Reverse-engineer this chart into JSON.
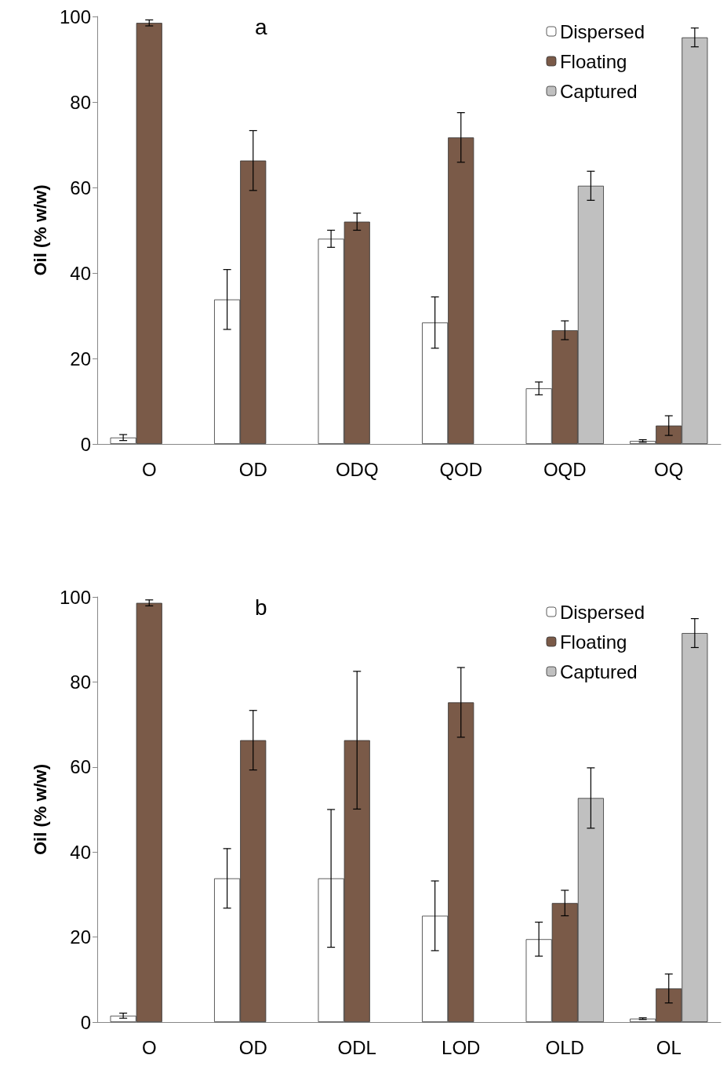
{
  "chart_data": [
    {
      "type": "bar",
      "title": "a",
      "ylabel": "Oil (% w/w)",
      "categories": [
        "O",
        "OD",
        "ODQ",
        "QOD",
        "OQD",
        "OQ"
      ],
      "ylim": [
        0,
        100
      ],
      "yticks": [
        0,
        20,
        40,
        60,
        80,
        100
      ],
      "grid": false,
      "legend": "top right",
      "series": [
        {
          "name": "Dispersed",
          "color": "#ffffff",
          "values": [
            1.5,
            33.8,
            48,
            28.4,
            13,
            0.7
          ],
          "errors": [
            0.7,
            7,
            2,
            6,
            1.5,
            0.3
          ]
        },
        {
          "name": "Floating",
          "color": "#7a5a48",
          "values": [
            98.5,
            66.3,
            52,
            71.7,
            26.6,
            4.3
          ],
          "errors": [
            0.7,
            7,
            2,
            5.8,
            2.2,
            2.3
          ]
        },
        {
          "name": "Captured",
          "color": "#c0c0c0",
          "values": [
            null,
            null,
            null,
            null,
            60.4,
            95.1
          ],
          "errors": [
            null,
            null,
            null,
            null,
            3.4,
            2.2
          ]
        }
      ]
    },
    {
      "type": "bar",
      "title": "b",
      "ylabel": "Oil (% w/w)",
      "categories": [
        "O",
        "OD",
        "ODL",
        "LOD",
        "OLD",
        "OL"
      ],
      "ylim": [
        0,
        100
      ],
      "yticks": [
        0,
        20,
        40,
        60,
        80,
        100
      ],
      "grid": false,
      "legend": "top right",
      "series": [
        {
          "name": "Dispersed",
          "color": "#ffffff",
          "values": [
            1.5,
            33.8,
            33.8,
            25,
            19.5,
            0.8
          ],
          "errors": [
            0.6,
            7,
            16.2,
            8.2,
            4,
            0.2
          ]
        },
        {
          "name": "Floating",
          "color": "#7a5a48",
          "values": [
            98.6,
            66.3,
            66.3,
            75.2,
            28,
            7.9
          ],
          "errors": [
            0.7,
            7,
            16.2,
            8.2,
            3,
            3.4
          ]
        },
        {
          "name": "Captured",
          "color": "#c0c0c0",
          "values": [
            null,
            null,
            null,
            null,
            52.7,
            91.5
          ],
          "errors": [
            null,
            null,
            null,
            null,
            7.1,
            3.4
          ]
        }
      ]
    }
  ]
}
